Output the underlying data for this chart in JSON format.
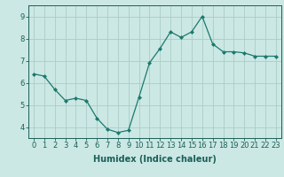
{
  "x": [
    0,
    1,
    2,
    3,
    4,
    5,
    6,
    7,
    8,
    9,
    10,
    11,
    12,
    13,
    14,
    15,
    16,
    17,
    18,
    19,
    20,
    21,
    22,
    23
  ],
  "y": [
    6.4,
    6.3,
    5.7,
    5.2,
    5.3,
    5.2,
    4.4,
    3.9,
    3.75,
    3.85,
    5.35,
    6.9,
    7.55,
    8.3,
    8.05,
    8.3,
    9.0,
    7.75,
    7.4,
    7.4,
    7.35,
    7.2,
    7.2,
    7.2
  ],
  "line_color": "#1a7a6e",
  "marker": "D",
  "marker_size": 2.0,
  "bg_color": "#cce8e4",
  "grid_color": "#aaccc8",
  "xlabel": "Humidex (Indice chaleur)",
  "xlim": [
    -0.5,
    23.5
  ],
  "ylim": [
    3.5,
    9.5
  ],
  "yticks": [
    4,
    5,
    6,
    7,
    8,
    9
  ],
  "xticks": [
    0,
    1,
    2,
    3,
    4,
    5,
    6,
    7,
    8,
    9,
    10,
    11,
    12,
    13,
    14,
    15,
    16,
    17,
    18,
    19,
    20,
    21,
    22,
    23
  ],
  "axis_color": "#1a5f58",
  "label_fontsize": 7.0,
  "tick_fontsize": 6.0,
  "linewidth": 0.9
}
